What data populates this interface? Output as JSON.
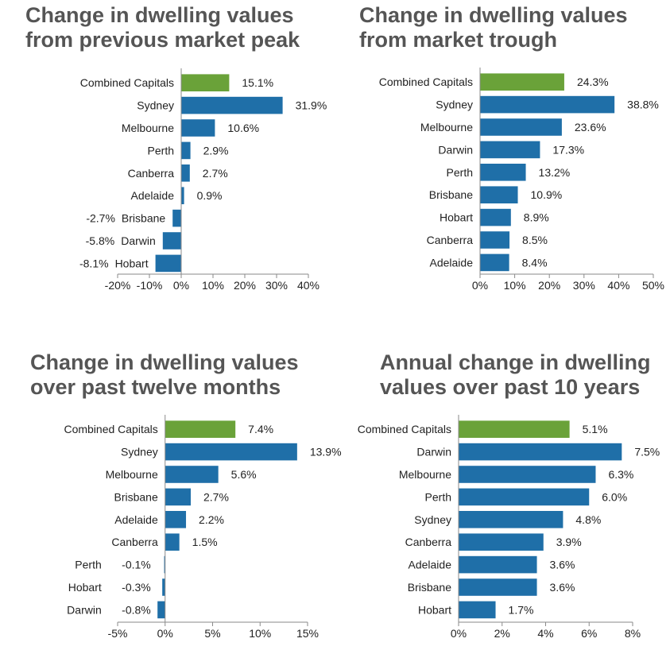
{
  "colors": {
    "highlight": "#6aa239",
    "bar": "#1f6fa8",
    "axis": "#8a8a8a",
    "title": "#555555"
  },
  "chart_data": [
    {
      "type": "bar",
      "orientation": "horizontal",
      "title": "Change in dwelling values from previous market peak",
      "title_lines": [
        "Change in dwelling values",
        "from previous market peak"
      ],
      "categories": [
        "Combined Capitals",
        "Sydney",
        "Melbourne",
        "Perth",
        "Canberra",
        "Adelaide",
        "Brisbane",
        "Darwin",
        "Hobart"
      ],
      "values": [
        15.1,
        31.9,
        10.6,
        2.9,
        2.7,
        0.9,
        -2.7,
        -5.8,
        -8.1
      ],
      "value_labels": [
        "15.1%",
        "31.9%",
        "10.6%",
        "2.9%",
        "2.7%",
        "0.9%",
        "-2.7%",
        "-5.8%",
        "-8.1%"
      ],
      "highlight_index": 0,
      "xlim": [
        -20,
        40
      ],
      "xticks": [
        -20,
        -10,
        0,
        10,
        20,
        30,
        40
      ],
      "xtick_labels": [
        "-20%",
        "-10%",
        "0%",
        "10%",
        "20%",
        "30%",
        "40%"
      ],
      "grid": false,
      "legend": "none"
    },
    {
      "type": "bar",
      "orientation": "horizontal",
      "title": "Change in dwelling values from market trough",
      "title_lines": [
        "Change in dwelling values",
        "from market trough"
      ],
      "categories": [
        "Combined Capitals",
        "Sydney",
        "Melbourne",
        "Darwin",
        "Perth",
        "Brisbane",
        "Hobart",
        "Canberra",
        "Adelaide"
      ],
      "values": [
        24.3,
        38.8,
        23.6,
        17.3,
        13.2,
        10.9,
        8.9,
        8.5,
        8.4
      ],
      "value_labels": [
        "24.3%",
        "38.8%",
        "23.6%",
        "17.3%",
        "13.2%",
        "10.9%",
        "8.9%",
        "8.5%",
        "8.4%"
      ],
      "highlight_index": 0,
      "xlim": [
        0,
        50
      ],
      "xticks": [
        0,
        10,
        20,
        30,
        40,
        50
      ],
      "xtick_labels": [
        "0%",
        "10%",
        "20%",
        "30%",
        "40%",
        "50%"
      ],
      "grid": false,
      "legend": "none"
    },
    {
      "type": "bar",
      "orientation": "horizontal",
      "title": "Change in dwelling values over past twelve months",
      "title_lines": [
        "Change in dwelling values",
        "over past twelve months"
      ],
      "categories": [
        "Combined Capitals",
        "Sydney",
        "Melbourne",
        "Brisbane",
        "Adelaide",
        "Canberra",
        "Perth",
        "Hobart",
        "Darwin"
      ],
      "values": [
        7.4,
        13.9,
        5.6,
        2.7,
        2.2,
        1.5,
        -0.1,
        -0.3,
        -0.8
      ],
      "value_labels": [
        "7.4%",
        "13.9%",
        "5.6%",
        "2.7%",
        "2.2%",
        "1.5%",
        "-0.1%",
        "-0.3%",
        "-0.8%"
      ],
      "highlight_index": 0,
      "xlim": [
        -5,
        15
      ],
      "xticks": [
        -5,
        0,
        5,
        10,
        15
      ],
      "xtick_labels": [
        "-5%",
        "0%",
        "5%",
        "10%",
        "15%"
      ],
      "grid": false,
      "legend": "none"
    },
    {
      "type": "bar",
      "orientation": "horizontal",
      "title": "Annual change in dwelling values over past 10 years",
      "title_lines": [
        "Annual change in dwelling",
        "values over past 10 years"
      ],
      "categories": [
        "Combined Capitals",
        "Darwin",
        "Melbourne",
        "Perth",
        "Sydney",
        "Canberra",
        "Adelaide",
        "Brisbane",
        "Hobart"
      ],
      "values": [
        5.1,
        7.5,
        6.3,
        6.0,
        4.8,
        3.9,
        3.6,
        3.6,
        1.7
      ],
      "value_labels": [
        "5.1%",
        "7.5%",
        "6.3%",
        "6.0%",
        "4.8%",
        "3.9%",
        "3.6%",
        "3.6%",
        "1.7%"
      ],
      "highlight_index": 0,
      "xlim": [
        0,
        8
      ],
      "xticks": [
        0,
        2,
        4,
        6,
        8
      ],
      "xtick_labels": [
        "0%",
        "2%",
        "4%",
        "6%",
        "8%"
      ],
      "grid": false,
      "legend": "none"
    }
  ]
}
